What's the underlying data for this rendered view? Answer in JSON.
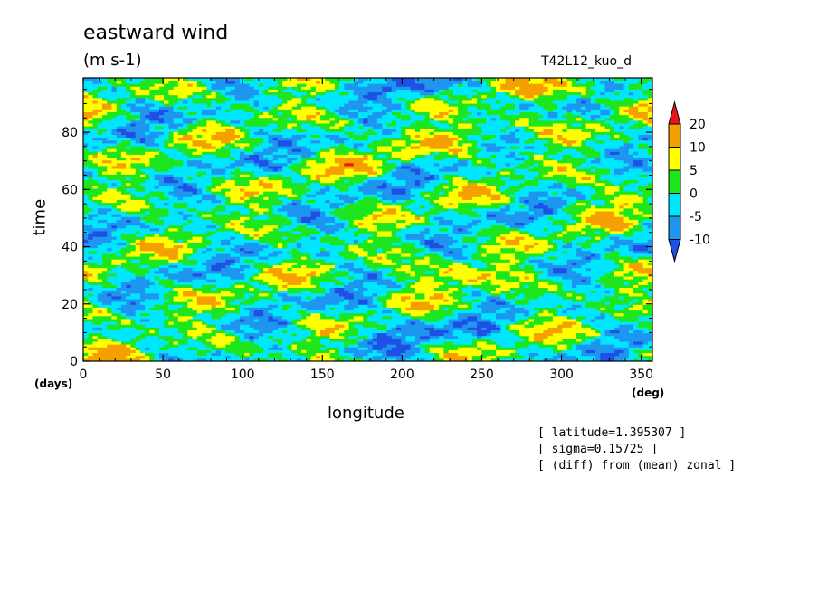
{
  "chart_data": {
    "type": "heatmap",
    "title": "eastward wind",
    "units": "(m s-1)",
    "experiment": "T42L12_kuo_d",
    "xlabel": "longitude",
    "ylabel": "time",
    "x_unit": "(deg)",
    "y_unit": "(days)",
    "xlim": [
      0,
      357
    ],
    "ylim": [
      0,
      99
    ],
    "x_ticks": [
      "0",
      "50",
      "100",
      "150",
      "200",
      "250",
      "300",
      "350"
    ],
    "y_ticks": [
      "0",
      "20",
      "40",
      "60",
      "80"
    ],
    "colorbar": {
      "levels": [
        "20",
        "10",
        "5",
        "0",
        "-5",
        "-10"
      ],
      "colors": [
        "#e8141c",
        "#f5a000",
        "#ffff00",
        "#1ee61e",
        "#00e6ff",
        "#1e96f0",
        "#1e50e6"
      ]
    },
    "notes": [
      "[ latitude=1.395307 ]",
      "[ sigma=0.15725 ]",
      "[ (diff) from (mean) zonal ]"
    ],
    "dominant_value_range": [
      -10,
      20
    ],
    "grid": false
  }
}
